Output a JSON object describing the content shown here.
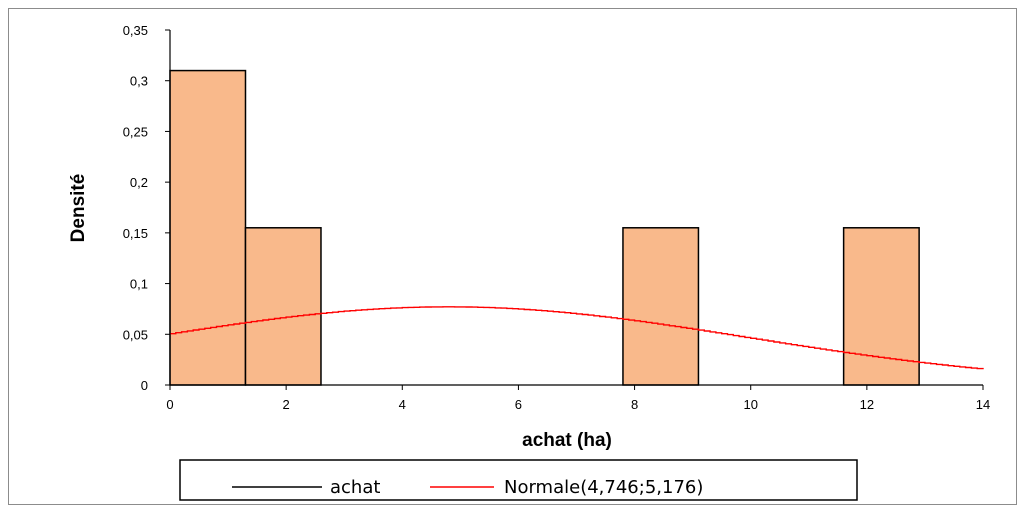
{
  "chart_data": {
    "type": "bar",
    "xlabel": "achat (ha)",
    "ylabel": "Densité",
    "xlim": [
      0,
      14
    ],
    "ylim": [
      0,
      0.35
    ],
    "x_ticks": [
      "0",
      "2",
      "4",
      "6",
      "8",
      "10",
      "12",
      "14"
    ],
    "y_ticks": [
      "0",
      "0,05",
      "0,1",
      "0,15",
      "0,2",
      "0,25",
      "0,3",
      "0,35"
    ],
    "histogram": {
      "name": "achat",
      "bins": [
        {
          "x0": 0,
          "x1": 1.3,
          "density": 0.31
        },
        {
          "x0": 1.3,
          "x1": 2.6,
          "density": 0.155
        },
        {
          "x0": 7.8,
          "x1": 9.1,
          "density": 0.155
        },
        {
          "x0": 11.6,
          "x1": 12.9,
          "density": 0.155
        }
      ]
    },
    "normal_curve": {
      "name": "Normale(4,746;5,176)",
      "mean": 4.746,
      "sd": 5.176
    },
    "legend": {
      "position": "bottom",
      "entries": [
        "achat",
        "Normale(4,746;5,176)"
      ]
    },
    "grid": false,
    "colors": {
      "bar_fill": "#f9b98b",
      "bar_stroke": "#000000",
      "curve": "#ff0000",
      "legend_achat_line": "#000000"
    }
  }
}
